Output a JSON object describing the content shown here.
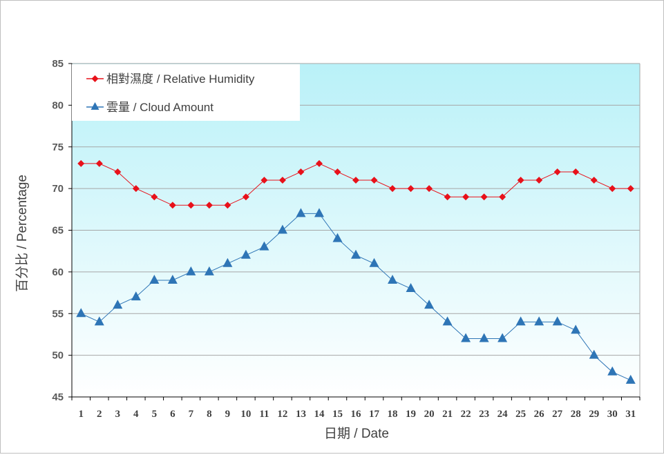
{
  "chart_data": {
    "type": "line",
    "xlabel": "日期 / Date",
    "ylabel": "百分比 / Percentage",
    "ylim": [
      45,
      85
    ],
    "yticks": [
      45,
      50,
      55,
      60,
      65,
      70,
      75,
      80,
      85
    ],
    "categories": [
      1,
      2,
      3,
      4,
      5,
      6,
      7,
      8,
      9,
      10,
      11,
      12,
      13,
      14,
      15,
      16,
      17,
      18,
      19,
      20,
      21,
      22,
      23,
      24,
      25,
      26,
      27,
      28,
      29,
      30,
      31
    ],
    "grid": "horizontal",
    "legend_placement": "top-left",
    "background": "gradient cyan to white",
    "series": [
      {
        "name": "相對濕度 / Relative Humidity",
        "color": "#e8111a",
        "marker": "diamond",
        "values": [
          73,
          73,
          72,
          70,
          69,
          68,
          68,
          68,
          68,
          69,
          71,
          71,
          72,
          73,
          72,
          71,
          71,
          70,
          70,
          70,
          69,
          69,
          69,
          69,
          71,
          71,
          72,
          72,
          71,
          70,
          70
        ]
      },
      {
        "name": "雲量 / Cloud Amount",
        "color": "#2e75b6",
        "marker": "triangle",
        "values": [
          55,
          54,
          56,
          57,
          59,
          59,
          60,
          60,
          61,
          62,
          63,
          65,
          67,
          67,
          64,
          62,
          61,
          59,
          58,
          56,
          54,
          52,
          52,
          52,
          54,
          54,
          54,
          53,
          50,
          48,
          47
        ]
      }
    ]
  }
}
